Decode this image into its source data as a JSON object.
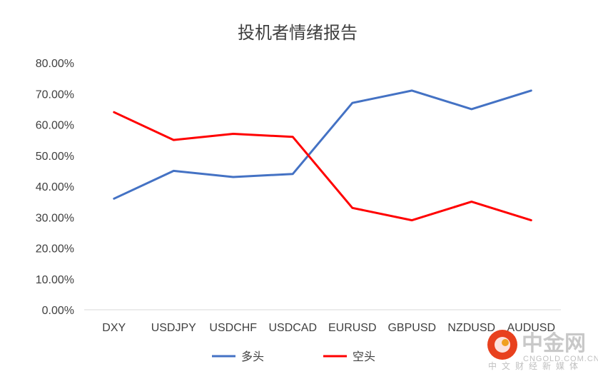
{
  "chart_data": {
    "type": "line",
    "title": "投机者情绪报告",
    "categories": [
      "DXY",
      "USDJPY",
      "USDCHF",
      "USDCAD",
      "EURUSD",
      "GBPUSD",
      "NZDUSD",
      "AUDUSD"
    ],
    "series": [
      {
        "name": "多头",
        "color": "#4472C4",
        "values": [
          0.36,
          0.45,
          0.43,
          0.44,
          0.67,
          0.71,
          0.65,
          0.71
        ]
      },
      {
        "name": "空头",
        "color": "#FF0000",
        "values": [
          0.64,
          0.55,
          0.57,
          0.56,
          0.33,
          0.29,
          0.35,
          0.29
        ]
      }
    ],
    "y_ticks": [
      "0.00%",
      "10.00%",
      "20.00%",
      "30.00%",
      "40.00%",
      "50.00%",
      "60.00%",
      "70.00%",
      "80.00%"
    ],
    "ylim": [
      0,
      0.8
    ],
    "grid": false,
    "legend_position": "bottom"
  },
  "watermark": {
    "logo_text": "中金网",
    "site": "CNGOLD.COM.CN",
    "tagline": "中文财经新媒体",
    "logo_color": "#E8411E"
  }
}
